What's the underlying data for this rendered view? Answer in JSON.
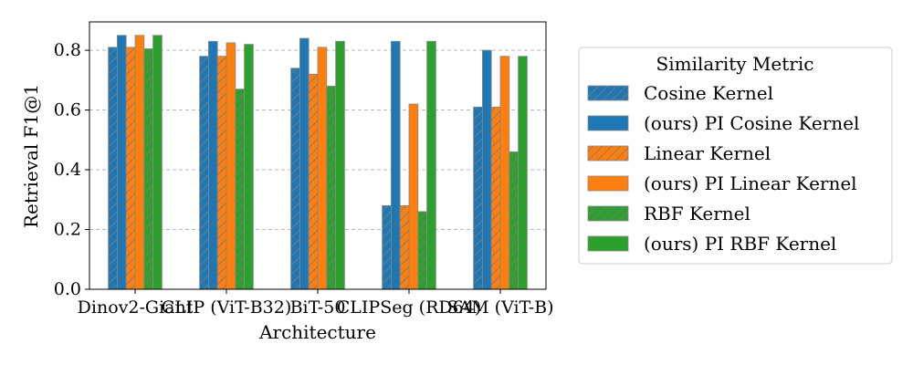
{
  "chart_data": {
    "type": "bar",
    "xlabel": "Architecture",
    "ylabel": "Retrieval F1@1",
    "ylim": [
      0,
      0.895
    ],
    "yticks": [
      "0.0",
      "0.2",
      "0.4",
      "0.6",
      "0.8"
    ],
    "grid": "y-dashed",
    "legend_title": "Similarity Metric",
    "legend_position": "outside-right",
    "categories": [
      "Dinov2-Giant",
      "CLIP (ViT-B32)",
      "BiT-50",
      "CLIPSeg (RD64)",
      "SAM (ViT-B)"
    ],
    "series": [
      {
        "name": "Cosine Kernel",
        "color": "#1f77b4",
        "hatch": "/",
        "values": [
          0.81,
          0.78,
          0.74,
          0.28,
          0.61
        ]
      },
      {
        "name": "(ours) PI Cosine Kernel",
        "color": "#1f77b4",
        "hatch": "",
        "values": [
          0.85,
          0.83,
          0.84,
          0.83,
          0.8
        ]
      },
      {
        "name": "Linear Kernel",
        "color": "#ff7f0e",
        "hatch": "/",
        "values": [
          0.81,
          0.78,
          0.72,
          0.28,
          0.61
        ]
      },
      {
        "name": "(ours) PI Linear Kernel",
        "color": "#ff7f0e",
        "hatch": "",
        "values": [
          0.85,
          0.825,
          0.81,
          0.62,
          0.78
        ]
      },
      {
        "name": "RBF Kernel",
        "color": "#2ca02c",
        "hatch": "/",
        "values": [
          0.805,
          0.67,
          0.68,
          0.26,
          0.46
        ]
      },
      {
        "name": "(ours) PI RBF Kernel",
        "color": "#2ca02c",
        "hatch": "",
        "values": [
          0.85,
          0.82,
          0.83,
          0.83,
          0.78
        ]
      }
    ]
  }
}
